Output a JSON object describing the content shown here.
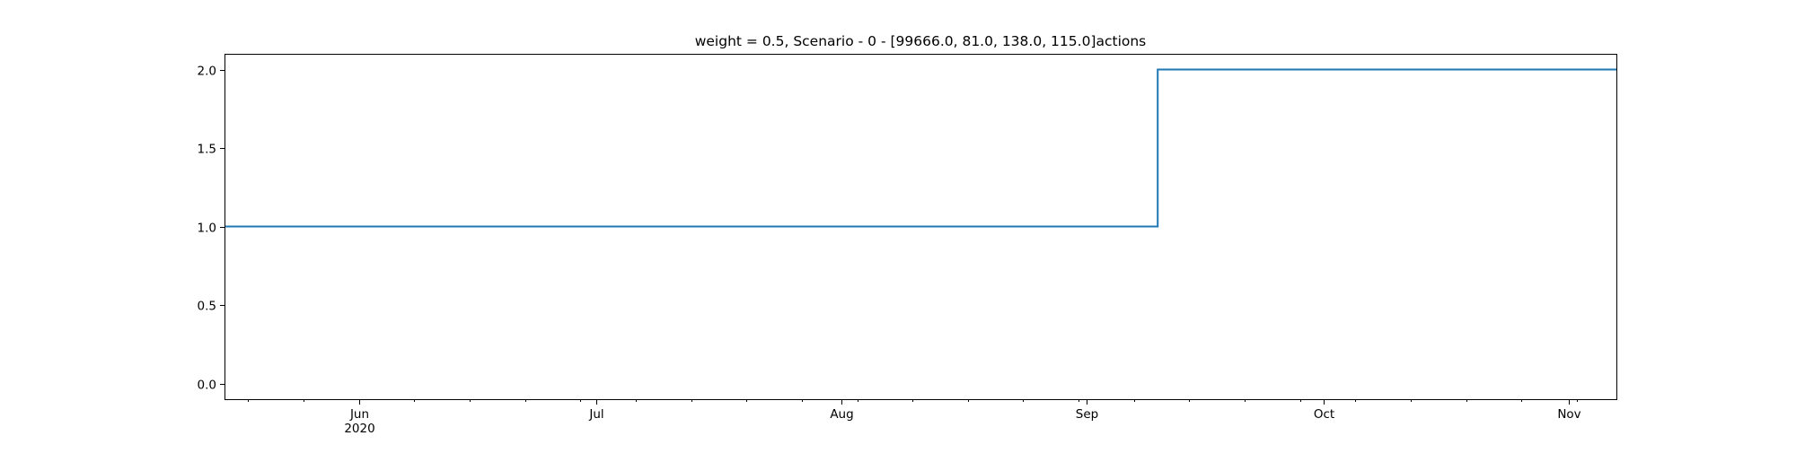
{
  "chart_data": {
    "type": "line",
    "drawstyle": "steps-post",
    "title": "weight = 0.5, Scenario - 0 - [99666.0, 81.0, 138.0, 115.0]actions",
    "xlabel": "",
    "ylabel": "",
    "grid": false,
    "legend": "none",
    "color": "#1f77b4",
    "xlim": [
      "2020-05-15",
      "2020-11-07"
    ],
    "ylim": [
      -0.1,
      2.1
    ],
    "x_major_ticks": [
      {
        "date": "2020-06-01",
        "label": "Jun",
        "sublabel": "2020"
      },
      {
        "date": "2020-07-01",
        "label": "Jul",
        "sublabel": ""
      },
      {
        "date": "2020-08-01",
        "label": "Aug",
        "sublabel": ""
      },
      {
        "date": "2020-09-01",
        "label": "Sep",
        "sublabel": ""
      },
      {
        "date": "2020-10-01",
        "label": "Oct",
        "sublabel": ""
      },
      {
        "date": "2020-11-01",
        "label": "Nov",
        "sublabel": ""
      }
    ],
    "y_ticks": [
      {
        "value": 0.0,
        "label": "0.0"
      },
      {
        "value": 0.5,
        "label": "0.5"
      },
      {
        "value": 1.0,
        "label": "1.0"
      },
      {
        "value": 1.5,
        "label": "1.5"
      },
      {
        "value": 2.0,
        "label": "2.0"
      }
    ],
    "series": [
      {
        "points": [
          {
            "x": "2020-05-15",
            "y": 1.0
          },
          {
            "x": "2020-09-10",
            "y": 2.0
          },
          {
            "x": "2020-11-07",
            "y": 2.0
          }
        ]
      }
    ]
  }
}
